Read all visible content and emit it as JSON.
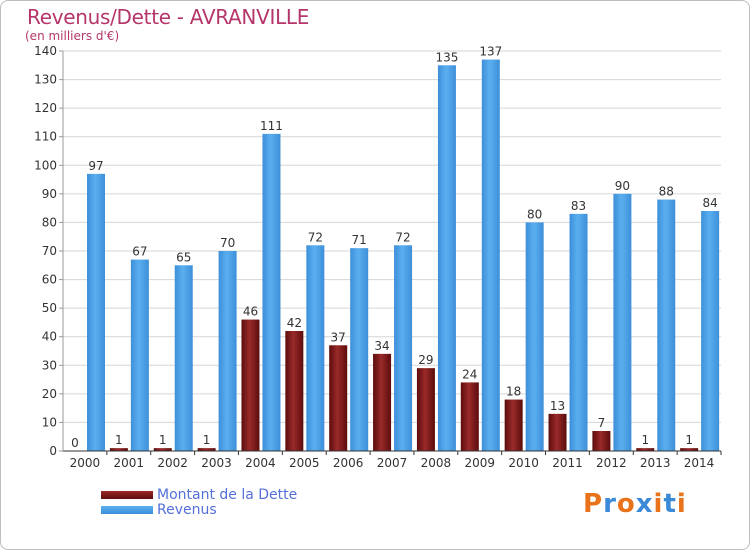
{
  "title": "Revenus/Dette - AVRANVILLE",
  "subtitle": "(en milliers d'€)",
  "logo": {
    "text": "Proxiti",
    "colors": [
      "#e8731a",
      "#3a8ad8",
      "#e8731a",
      "#3a8ad8",
      "#e8731a",
      "#3a8ad8",
      "#e8731a"
    ]
  },
  "colors": {
    "debt": "#7a1414",
    "revenue": "#4aa0e6",
    "title": "#b5366a",
    "legend_text": "#5470d8"
  },
  "chart_data": {
    "type": "bar",
    "title": "Revenus/Dette - AVRANVILLE",
    "subtitle": "(en milliers d'€)",
    "categories": [
      "2000",
      "2001",
      "2002",
      "2003",
      "2004",
      "2005",
      "2006",
      "2007",
      "2008",
      "2009",
      "2010",
      "2011",
      "2012",
      "2013",
      "2014"
    ],
    "series": [
      {
        "name": "Montant de la Dette",
        "color": "#7a1414",
        "values": [
          0,
          1,
          1,
          1,
          46,
          42,
          37,
          34,
          29,
          24,
          18,
          13,
          7,
          1,
          1
        ]
      },
      {
        "name": "Revenus",
        "color": "#4aa0e6",
        "values": [
          97,
          67,
          65,
          70,
          111,
          72,
          71,
          72,
          135,
          137,
          80,
          83,
          90,
          88,
          84
        ]
      }
    ],
    "ylim": [
      0,
      140
    ],
    "yticks": [
      0,
      10,
      20,
      30,
      40,
      50,
      60,
      70,
      80,
      90,
      100,
      110,
      120,
      130,
      140
    ],
    "grid": true,
    "legend_position": "bottom-left"
  }
}
